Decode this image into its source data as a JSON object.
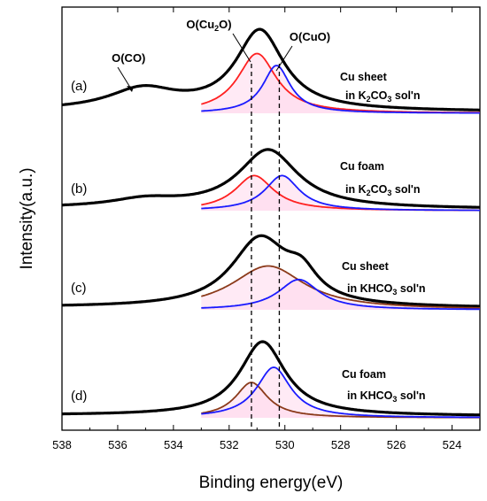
{
  "chart_data": {
    "type": "line",
    "xlabel": "Binding energy(eV)",
    "ylabel": "Intensity(a.u.)",
    "xlim": [
      538,
      523
    ],
    "x_reversed": true,
    "x_ticks": [
      538,
      536,
      534,
      532,
      530,
      528,
      526,
      524
    ],
    "y_ticks_shown": false,
    "reference_lines_ev": [
      531.2,
      530.2
    ],
    "peak_labels": [
      {
        "text": "O(CO)",
        "energy": 535.1
      },
      {
        "text": "O(Cu",
        "sub": "2",
        "tail": "O)",
        "energy": 531.2
      },
      {
        "text": "O(CuO)",
        "energy": 530.2
      }
    ],
    "colors": {
      "total": "#000000",
      "cu2o": "#ff2020",
      "cuo": "#1a1aff",
      "combined": "#8b3a1a",
      "fill": "#ffd6ec"
    },
    "panels": [
      {
        "label": "(a)",
        "sample_line1": "Cu sheet",
        "sample_line2_pre": "in K",
        "sample_line2_sub": "2",
        "sample_line2_mid": "CO",
        "sample_line2_sub2": "3",
        "sample_line2_post": " sol'n",
        "components": [
          {
            "role": "total",
            "peaks": [
              {
                "center": 535.1,
                "height": 0.26,
                "width": 1.5
              },
              {
                "center": 530.9,
                "height": 1.0,
                "width": 1.05
              }
            ],
            "range": [
              538,
              523
            ]
          },
          {
            "role": "cu2o",
            "peaks": [
              {
                "center": 531.0,
                "height": 0.75,
                "width": 0.85
              }
            ],
            "range": [
              533,
              523
            ]
          },
          {
            "role": "cuo",
            "peaks": [
              {
                "center": 530.3,
                "height": 0.6,
                "width": 0.6
              }
            ],
            "range": [
              533,
              523
            ]
          }
        ]
      },
      {
        "label": "(b)",
        "sample_line1": "Cu foam",
        "sample_line2_pre": "in K",
        "sample_line2_sub": "2",
        "sample_line2_mid": "CO",
        "sample_line2_sub2": "3",
        "sample_line2_post": " sol'n",
        "components": [
          {
            "role": "total",
            "peaks": [
              {
                "center": 535.0,
                "height": 0.1,
                "width": 1.5
              },
              {
                "center": 530.6,
                "height": 0.75,
                "width": 1.3
              }
            ],
            "range": [
              538,
              523
            ]
          },
          {
            "role": "cu2o",
            "peaks": [
              {
                "center": 531.1,
                "height": 0.45,
                "width": 0.85
              }
            ],
            "range": [
              533,
              523
            ]
          },
          {
            "role": "cuo",
            "peaks": [
              {
                "center": 530.1,
                "height": 0.45,
                "width": 0.75
              }
            ],
            "range": [
              533,
              523
            ]
          }
        ]
      },
      {
        "label": "(c)",
        "sample_line1": "Cu sheet",
        "sample_line2_pre": "in KHCO",
        "sample_line2_sub": "3",
        "sample_line2_mid": "",
        "sample_line2_sub2": "",
        "sample_line2_post": " sol'n",
        "components": [
          {
            "role": "total",
            "peaks": [
              {
                "center": 530.9,
                "height": 0.85,
                "width": 1.25
              },
              {
                "center": 529.4,
                "height": 0.3,
                "width": 0.7
              }
            ],
            "range": [
              538,
              523
            ]
          },
          {
            "role": "combined",
            "peaks": [
              {
                "center": 530.6,
                "height": 0.55,
                "width": 1.6
              }
            ],
            "range": [
              533,
              523
            ]
          },
          {
            "role": "cuo",
            "peaks": [
              {
                "center": 529.5,
                "height": 0.38,
                "width": 0.9
              }
            ],
            "range": [
              533,
              523
            ]
          }
        ]
      },
      {
        "label": "(d)",
        "sample_line1": "Cu foam",
        "sample_line2_pre": "in KHCO",
        "sample_line2_sub": "3",
        "sample_line2_mid": "",
        "sample_line2_sub2": "",
        "sample_line2_post": " sol'n",
        "components": [
          {
            "role": "total",
            "peaks": [
              {
                "center": 530.8,
                "height": 0.88,
                "width": 1.0
              }
            ],
            "range": [
              538,
              523
            ]
          },
          {
            "role": "combined",
            "peaks": [
              {
                "center": 531.2,
                "height": 0.42,
                "width": 0.7
              }
            ],
            "range": [
              533,
              523
            ]
          },
          {
            "role": "cuo",
            "peaks": [
              {
                "center": 530.4,
                "height": 0.6,
                "width": 0.75
              }
            ],
            "range": [
              533,
              523
            ]
          }
        ]
      }
    ]
  }
}
